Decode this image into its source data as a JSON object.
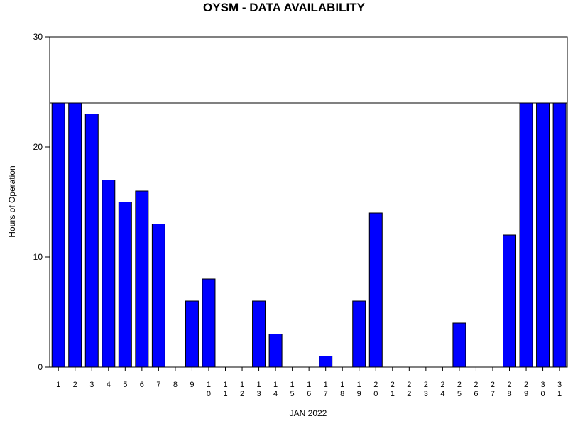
{
  "chart_data": {
    "type": "bar",
    "title": "OYSM - DATA AVAILABILITY",
    "xlabel": "JAN 2022",
    "ylabel": "Hours of Operation",
    "ylim": [
      0,
      30
    ],
    "yticks": [
      0,
      10,
      20,
      30
    ],
    "reference_line": 24,
    "grid": false,
    "bar_color": "#0000ff",
    "categories": [
      "1",
      "2",
      "3",
      "4",
      "5",
      "6",
      "7",
      "8",
      "9",
      "10",
      "11",
      "12",
      "13",
      "14",
      "15",
      "16",
      "17",
      "18",
      "19",
      "20",
      "21",
      "22",
      "23",
      "24",
      "25",
      "26",
      "27",
      "28",
      "29",
      "30",
      "31"
    ],
    "values": [
      24,
      24,
      23,
      17,
      15,
      16,
      13,
      0,
      6,
      8,
      0,
      0,
      6,
      3,
      0,
      0,
      1,
      0,
      6,
      14,
      0,
      0,
      0,
      0,
      4,
      0,
      0,
      12,
      24,
      24,
      24
    ]
  }
}
